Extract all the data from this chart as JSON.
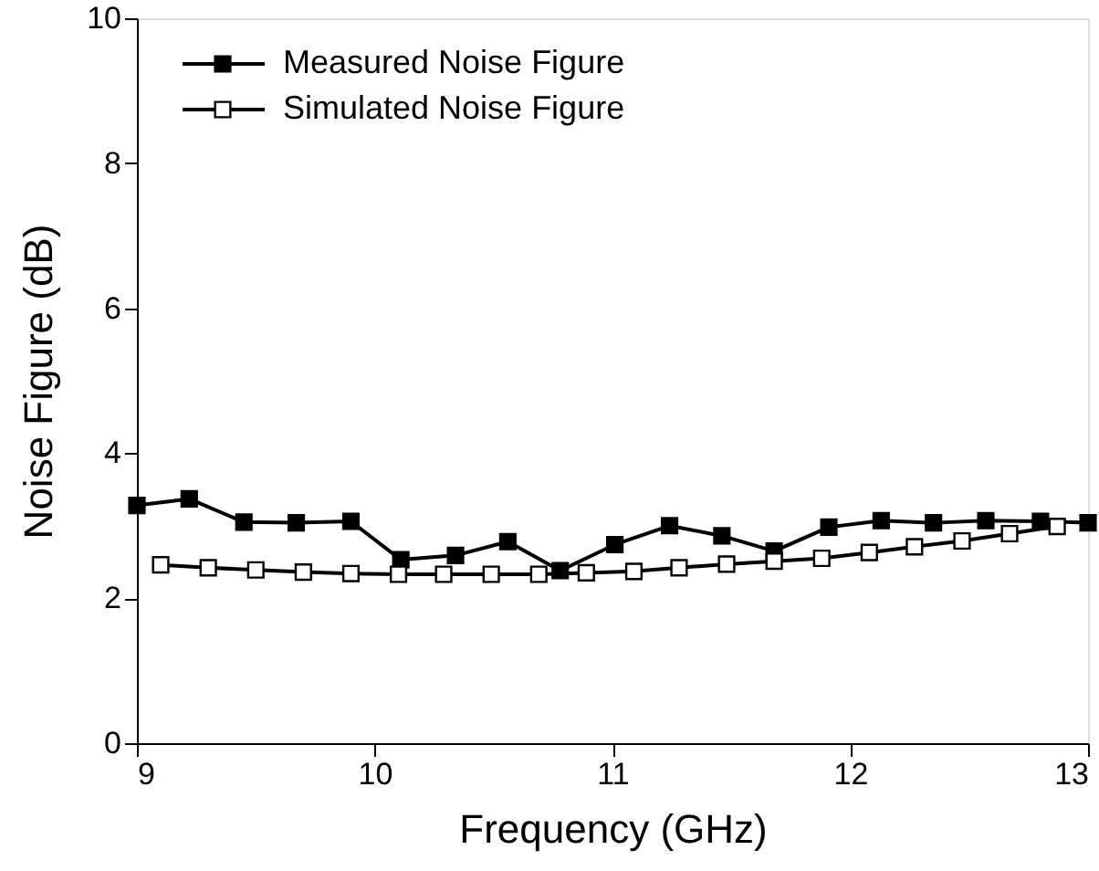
{
  "chart_data": {
    "type": "line",
    "xlabel": "Frequency (GHz)",
    "ylabel": "Noise Figure (dB)",
    "xlim": [
      9,
      13
    ],
    "xticks": [
      9,
      10,
      11,
      12,
      13
    ],
    "ylim": [
      0,
      10
    ],
    "yticks": [
      0,
      2,
      4,
      6,
      8,
      10
    ],
    "grid": false,
    "legend": "top left",
    "marker": "square",
    "line_style": "solid",
    "series": [
      {
        "name": "Measured Noise Figure",
        "color": "#000000",
        "x": [
          9,
          9.22,
          9.45,
          9.67,
          9.9,
          10.11,
          10.34,
          10.56,
          10.78,
          11.01,
          11.24,
          11.46,
          11.68,
          11.91,
          12.13,
          12.35,
          12.57,
          12.8,
          13
        ],
        "values": [
          3.28,
          3.37,
          3.05,
          3.04,
          3.06,
          2.53,
          2.59,
          2.78,
          2.38,
          2.74,
          3.0,
          2.86,
          2.65,
          2.98,
          3.07,
          3.04,
          3.07,
          3.06,
          3.04
        ]
      },
      {
        "name": "Simulated Noise Figure",
        "color": "#000000",
        "x": [
          9.1,
          9.3,
          9.5,
          9.7,
          9.9,
          10.1,
          10.29,
          10.49,
          10.69,
          10.89,
          11.09,
          11.28,
          11.48,
          11.68,
          11.88,
          12.08,
          12.27,
          12.47,
          12.67,
          12.87
        ],
        "values": [
          2.46,
          2.42,
          2.39,
          2.36,
          2.34,
          2.33,
          2.33,
          2.33,
          2.33,
          2.35,
          2.37,
          2.42,
          2.47,
          2.51,
          2.55,
          2.63,
          2.71,
          2.79,
          2.89,
          2.99
        ]
      }
    ]
  }
}
